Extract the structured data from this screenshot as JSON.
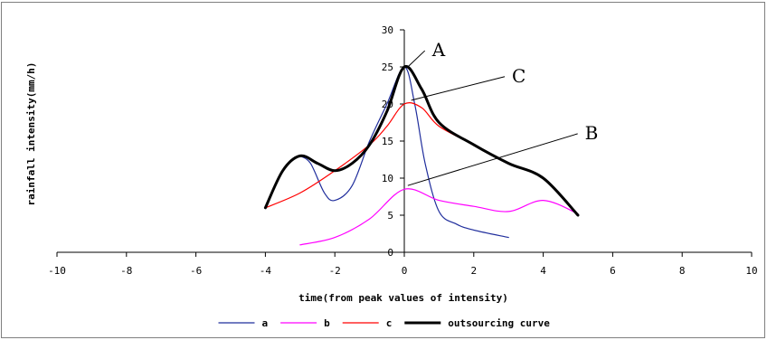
{
  "chart_data": {
    "type": "line",
    "xlabel": "time(from peak values of intensity)",
    "ylabel": "rainfall intensity(mm/h)",
    "xlim": [
      -10,
      10
    ],
    "ylim": [
      0,
      30
    ],
    "x_ticks": [
      "-10",
      "-8",
      "-6",
      "-4",
      "-2",
      "0",
      "2",
      "4",
      "6",
      "8",
      "10"
    ],
    "y_ticks": [
      "0",
      "5",
      "10",
      "15",
      "20",
      "25",
      "30"
    ],
    "grid": false,
    "legend_position": "bottom",
    "series": [
      {
        "name": "a",
        "color": "#1f2d9c",
        "width": 1.2,
        "points": [
          [
            -3,
            13
          ],
          [
            -2.7,
            12
          ],
          [
            -2.3,
            8
          ],
          [
            -2,
            7
          ],
          [
            -1.5,
            9
          ],
          [
            -1,
            15
          ],
          [
            -0.5,
            20
          ],
          [
            0,
            25
          ],
          [
            0.3,
            20
          ],
          [
            0.6,
            12
          ],
          [
            1,
            5.5
          ],
          [
            1.5,
            3.8
          ],
          [
            2,
            3
          ],
          [
            3,
            2
          ]
        ]
      },
      {
        "name": "b",
        "color": "#ff00ff",
        "width": 1.2,
        "points": [
          [
            -3,
            1
          ],
          [
            -2,
            2
          ],
          [
            -1,
            4.5
          ],
          [
            0,
            8.5
          ],
          [
            1,
            7
          ],
          [
            2,
            6.2
          ],
          [
            3,
            5.5
          ],
          [
            4,
            7
          ],
          [
            5,
            5.2
          ]
        ]
      },
      {
        "name": "c",
        "color": "#ff0000",
        "width": 1.2,
        "points": [
          [
            -4,
            6
          ],
          [
            -3,
            8
          ],
          [
            -2,
            11
          ],
          [
            -1,
            14.5
          ],
          [
            -0.5,
            17
          ],
          [
            0,
            20
          ],
          [
            0.5,
            19.5
          ],
          [
            1,
            17
          ],
          [
            2,
            14.5
          ],
          [
            3,
            12
          ],
          [
            4,
            10
          ],
          [
            5,
            5
          ]
        ]
      },
      {
        "name": "outsourcing curve",
        "color": "#000000",
        "width": 3,
        "points": [
          [
            -4,
            6
          ],
          [
            -3.5,
            11
          ],
          [
            -3,
            13
          ],
          [
            -2.5,
            12
          ],
          [
            -2,
            11
          ],
          [
            -1.5,
            12
          ],
          [
            -1,
            14.5
          ],
          [
            -0.5,
            19
          ],
          [
            0,
            25
          ],
          [
            0.5,
            22
          ],
          [
            1,
            17.5
          ],
          [
            2,
            14.5
          ],
          [
            3,
            12
          ],
          [
            4,
            10
          ],
          [
            5,
            5
          ]
        ]
      }
    ],
    "annotations": [
      {
        "text": "A",
        "x": 0.8,
        "y": 26.7,
        "point_x": 0.1,
        "point_y": 25
      },
      {
        "text": "C",
        "x": 3.1,
        "y": 23.2,
        "point_x": 0.2,
        "point_y": 20.5
      },
      {
        "text": "B",
        "x": 5.2,
        "y": 15.5,
        "point_x": 0.1,
        "point_y": 9
      }
    ]
  }
}
